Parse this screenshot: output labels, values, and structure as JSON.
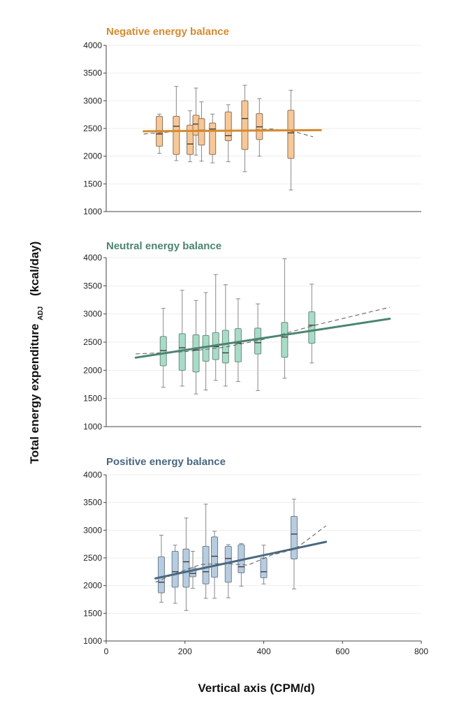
{
  "chart_data": {
    "type": "box",
    "xlabel": "Vertical axis (CPM/d)",
    "ylabel": "Total energy expenditure",
    "ylabel_subscript": "ADJ",
    "ylabel_unit": "(kcal/day)",
    "xlim": [
      0,
      800
    ],
    "ylim": [
      1000,
      4000
    ],
    "x_ticks": [
      0,
      200,
      400,
      600,
      800
    ],
    "y_ticks": [
      1000,
      1500,
      2000,
      2500,
      3000,
      3500,
      4000
    ],
    "grid": "horizontal",
    "panels": [
      {
        "title": "Negative energy balance",
        "color": "#d58a2e",
        "box_fill": "#f7c896",
        "box_stroke": "#8a7060",
        "fit_line": [
          [
            95,
            2450
          ],
          [
            545,
            2470
          ]
        ],
        "dashed_line": [
          [
            95,
            2400
          ],
          [
            185,
            2450
          ],
          [
            320,
            2460
          ],
          [
            420,
            2490
          ],
          [
            480,
            2440
          ],
          [
            525,
            2350
          ]
        ],
        "boxes": [
          {
            "x": 135,
            "whisker_low": 2050,
            "q1": 2180,
            "median": 2400,
            "q3": 2720,
            "whisker_high": 2760
          },
          {
            "x": 178,
            "whisker_low": 1920,
            "q1": 2030,
            "median": 2540,
            "q3": 2720,
            "whisker_high": 3260
          },
          {
            "x": 213,
            "whisker_low": 1900,
            "q1": 2030,
            "median": 2220,
            "q3": 2560,
            "whisker_high": 2820
          },
          {
            "x": 228,
            "whisker_low": 2020,
            "q1": 2380,
            "median": 2580,
            "q3": 2740,
            "whisker_high": 3230
          },
          {
            "x": 242,
            "whisker_low": 1910,
            "q1": 2200,
            "median": 2470,
            "q3": 2680,
            "whisker_high": 2980
          },
          {
            "x": 270,
            "whisker_low": 1880,
            "q1": 2030,
            "median": 2490,
            "q3": 2600,
            "whisker_high": 2760
          },
          {
            "x": 310,
            "whisker_low": 1900,
            "q1": 2280,
            "median": 2370,
            "q3": 2800,
            "whisker_high": 2930
          },
          {
            "x": 352,
            "whisker_low": 1720,
            "q1": 2120,
            "median": 2680,
            "q3": 3000,
            "whisker_high": 3280
          },
          {
            "x": 389,
            "whisker_low": 2000,
            "q1": 2300,
            "median": 2530,
            "q3": 2770,
            "whisker_high": 3040
          },
          {
            "x": 469,
            "whisker_low": 1390,
            "q1": 1960,
            "median": 2420,
            "q3": 2830,
            "whisker_high": 3190
          }
        ]
      },
      {
        "title": "Neutral energy balance",
        "color": "#4a8570",
        "box_fill": "#a8dcc8",
        "box_stroke": "#6e8a7e",
        "fit_line": [
          [
            75,
            2225
          ],
          [
            720,
            2915
          ]
        ],
        "dashed_line": [
          [
            75,
            2290
          ],
          [
            200,
            2330
          ],
          [
            300,
            2410
          ],
          [
            400,
            2550
          ],
          [
            530,
            2800
          ],
          [
            720,
            3120
          ]
        ],
        "boxes": [
          {
            "x": 145,
            "whisker_low": 1700,
            "q1": 2080,
            "median": 2350,
            "q3": 2600,
            "whisker_high": 3100
          },
          {
            "x": 193,
            "whisker_low": 1720,
            "q1": 2000,
            "median": 2400,
            "q3": 2650,
            "whisker_high": 3420
          },
          {
            "x": 228,
            "whisker_low": 1580,
            "q1": 1970,
            "median": 2360,
            "q3": 2630,
            "whisker_high": 3240
          },
          {
            "x": 253,
            "whisker_low": 1650,
            "q1": 2160,
            "median": 2420,
            "q3": 2620,
            "whisker_high": 3380
          },
          {
            "x": 278,
            "whisker_low": 1820,
            "q1": 2190,
            "median": 2420,
            "q3": 2670,
            "whisker_high": 3700
          },
          {
            "x": 303,
            "whisker_low": 1720,
            "q1": 2130,
            "median": 2310,
            "q3": 2710,
            "whisker_high": 3520
          },
          {
            "x": 335,
            "whisker_low": 1800,
            "q1": 2150,
            "median": 2480,
            "q3": 2740,
            "whisker_high": 3270
          },
          {
            "x": 385,
            "whisker_low": 1640,
            "q1": 2290,
            "median": 2490,
            "q3": 2750,
            "whisker_high": 3180
          },
          {
            "x": 453,
            "whisker_low": 1860,
            "q1": 2230,
            "median": 2590,
            "q3": 2850,
            "whisker_high": 3980
          },
          {
            "x": 522,
            "whisker_low": 2130,
            "q1": 2480,
            "median": 2800,
            "q3": 3040,
            "whisker_high": 3530
          }
        ]
      },
      {
        "title": "Positive energy balance",
        "color": "#4a6880",
        "box_fill": "#b8cce0",
        "box_stroke": "#6e7f90",
        "fit_line": [
          [
            125,
            2130
          ],
          [
            558,
            2790
          ]
        ],
        "dashed_line": [
          [
            125,
            2060
          ],
          [
            180,
            2230
          ],
          [
            240,
            2380
          ],
          [
            300,
            2400
          ],
          [
            360,
            2370
          ],
          [
            420,
            2550
          ],
          [
            480,
            2660
          ],
          [
            558,
            3080
          ]
        ],
        "boxes": [
          {
            "x": 140,
            "whisker_low": 1700,
            "q1": 1870,
            "median": 2060,
            "q3": 2520,
            "whisker_high": 2910
          },
          {
            "x": 175,
            "whisker_low": 1680,
            "q1": 1970,
            "median": 2250,
            "q3": 2620,
            "whisker_high": 2730
          },
          {
            "x": 203,
            "whisker_low": 1550,
            "q1": 1970,
            "median": 2430,
            "q3": 2660,
            "whisker_high": 3220
          },
          {
            "x": 220,
            "whisker_low": 1950,
            "q1": 2160,
            "median": 2220,
            "q3": 2320,
            "whisker_high": 2620
          },
          {
            "x": 253,
            "whisker_low": 1770,
            "q1": 2030,
            "median": 2250,
            "q3": 2710,
            "whisker_high": 3470
          },
          {
            "x": 275,
            "whisker_low": 1770,
            "q1": 2150,
            "median": 2530,
            "q3": 2880,
            "whisker_high": 2980
          },
          {
            "x": 310,
            "whisker_low": 1780,
            "q1": 2060,
            "median": 2490,
            "q3": 2710,
            "whisker_high": 2740
          },
          {
            "x": 343,
            "whisker_low": 1990,
            "q1": 2230,
            "median": 2340,
            "q3": 2740,
            "whisker_high": 2760
          },
          {
            "x": 400,
            "whisker_low": 2030,
            "q1": 2140,
            "median": 2250,
            "q3": 2500,
            "whisker_high": 2730
          },
          {
            "x": 477,
            "whisker_low": 1940,
            "q1": 2480,
            "median": 2930,
            "q3": 3250,
            "whisker_high": 3560
          }
        ]
      }
    ]
  }
}
